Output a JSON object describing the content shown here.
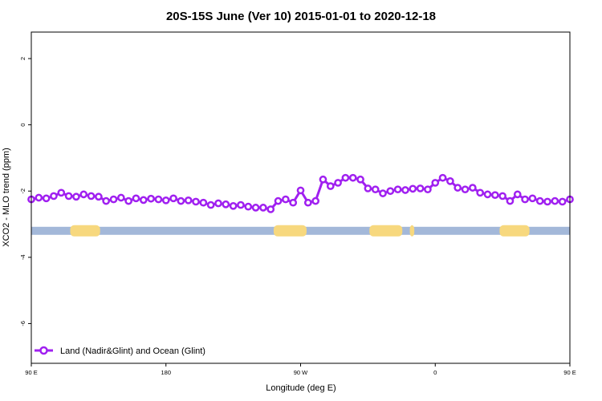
{
  "chart_data": {
    "type": "line",
    "title": "20S-15S June (Ver 10)   2015-01-01 to 2020-12-18",
    "xlabel": "Longitude (deg E)",
    "ylabel": "XCO2 - MLO trend (ppm)",
    "xlim": [
      0,
      360
    ],
    "ylim": [
      -7.2,
      2.8
    ],
    "x_ticks": [
      {
        "value": 0,
        "label": "90 E"
      },
      {
        "value": 90,
        "label": "180"
      },
      {
        "value": 180,
        "label": "90 W"
      },
      {
        "value": 270,
        "label": "0"
      },
      {
        "value": 360,
        "label": "90 E"
      }
    ],
    "y_ticks": [
      {
        "value": 2,
        "label": "2"
      },
      {
        "value": 0,
        "label": "0"
      },
      {
        "value": -2,
        "label": "-2"
      },
      {
        "value": -4,
        "label": "-4"
      },
      {
        "value": -6,
        "label": "-6"
      }
    ],
    "grid": false,
    "legend_position": "bottom-left",
    "series": [
      {
        "name": "Land (Nadir&Glint) and Ocean (Glint)",
        "color": "#a020f0",
        "marker": "open-circle",
        "x": [
          0,
          5,
          10,
          15,
          20,
          25,
          30,
          35,
          40,
          45,
          50,
          55,
          60,
          65,
          70,
          75,
          80,
          85,
          90,
          95,
          100,
          105,
          110,
          115,
          120,
          125,
          130,
          135,
          140,
          145,
          150,
          155,
          160,
          165,
          170,
          175,
          180,
          185,
          190,
          195,
          200,
          205,
          210,
          215,
          220,
          225,
          230,
          235,
          240,
          245,
          250,
          255,
          260,
          265,
          270,
          275,
          280,
          285,
          290,
          295,
          300,
          305,
          310,
          315,
          320,
          325,
          330,
          335,
          340,
          345,
          350,
          355,
          360
        ],
        "y": [
          -2.25,
          -2.2,
          -2.22,
          -2.15,
          -2.05,
          -2.15,
          -2.17,
          -2.1,
          -2.15,
          -2.17,
          -2.3,
          -2.25,
          -2.2,
          -2.3,
          -2.22,
          -2.27,
          -2.23,
          -2.25,
          -2.28,
          -2.22,
          -2.3,
          -2.28,
          -2.32,
          -2.35,
          -2.42,
          -2.37,
          -2.4,
          -2.45,
          -2.42,
          -2.47,
          -2.5,
          -2.5,
          -2.55,
          -2.3,
          -2.25,
          -2.35,
          -1.98,
          -2.35,
          -2.3,
          -1.65,
          -1.85,
          -1.75,
          -1.6,
          -1.6,
          -1.65,
          -1.92,
          -1.95,
          -2.07,
          -2.0,
          -1.95,
          -1.97,
          -1.93,
          -1.92,
          -1.95,
          -1.75,
          -1.6,
          -1.7,
          -1.9,
          -1.95,
          -1.9,
          -2.05,
          -2.1,
          -2.12,
          -2.15,
          -2.3,
          -2.1,
          -2.25,
          -2.22,
          -2.3,
          -2.32,
          -2.3,
          -2.32,
          -2.25
        ]
      }
    ],
    "land_strip": {
      "y": -3.2,
      "ocean_color": "#a3b8d9",
      "land_color": "#f7d87e",
      "land_ranges": [
        [
          26,
          46
        ],
        [
          162,
          184
        ],
        [
          226,
          248
        ],
        [
          253,
          256
        ],
        [
          313,
          333
        ]
      ]
    }
  }
}
